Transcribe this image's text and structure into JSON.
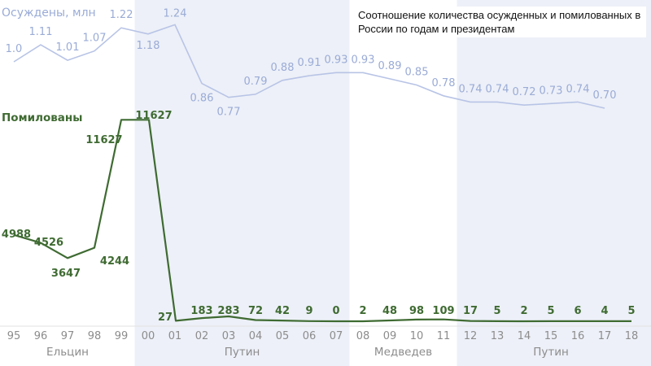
{
  "note": "Соотношение количества осужденных и помилованных в России по годам и президентам",
  "colors": {
    "convicted": "#b8c4e6",
    "convicted_text": "#9aabd6",
    "pardoned": "#3f6b32",
    "band": "#edf0f8",
    "tick": "#8c8c8c"
  },
  "chart_data": {
    "type": "line",
    "categories": [
      "95",
      "96",
      "97",
      "98",
      "99",
      "00",
      "01",
      "02",
      "03",
      "04",
      "05",
      "06",
      "07",
      "08",
      "09",
      "10",
      "11",
      "12",
      "13",
      "14",
      "15",
      "16",
      "17",
      "18"
    ],
    "series": [
      {
        "name": "Осуждены, млн",
        "values": [
          1.0,
          1.11,
          1.01,
          1.07,
          1.22,
          1.18,
          1.24,
          0.86,
          0.77,
          0.79,
          0.88,
          0.91,
          0.93,
          0.93,
          0.89,
          0.85,
          0.78,
          0.74,
          0.74,
          0.72,
          0.73,
          0.74,
          0.7,
          null
        ],
        "labels": [
          "1.0",
          "1.11",
          "1.01",
          "1.07",
          "1.22",
          "1.18",
          "1.24",
          "0.86",
          "0.77",
          "0.79",
          "0.88",
          "0.91",
          "0.93",
          "0.93",
          "0.89",
          "0.85",
          "0.78",
          "0.74",
          "0.74",
          "0.72",
          "0.73",
          "0.74",
          "0.70",
          ""
        ]
      },
      {
        "name": "Помилованы",
        "values": [
          4988,
          4526,
          3647,
          4244,
          11627,
          11627,
          27,
          183,
          283,
          72,
          42,
          9,
          0,
          2,
          48,
          98,
          109,
          17,
          5,
          2,
          5,
          6,
          4,
          5
        ],
        "labels": [
          "4988",
          "4526",
          "3647",
          "4244",
          "11627",
          "11627",
          "27",
          "183",
          "283",
          "72",
          "42",
          "9",
          "0",
          "2",
          "48",
          "98",
          "109",
          "17",
          "5",
          "2",
          "5",
          "6",
          "4",
          "5"
        ]
      }
    ],
    "eras": [
      {
        "name": "Ельцин",
        "from": "95",
        "to": "99",
        "shaded": false
      },
      {
        "name": "Путин",
        "from": "00",
        "to": "07",
        "shaded": true
      },
      {
        "name": "Медведев",
        "from": "08",
        "to": "11",
        "shaded": false
      },
      {
        "name": "Путин",
        "from": "12",
        "to": "18",
        "shaded": true
      }
    ],
    "grid": false,
    "legend": "inline labels"
  }
}
